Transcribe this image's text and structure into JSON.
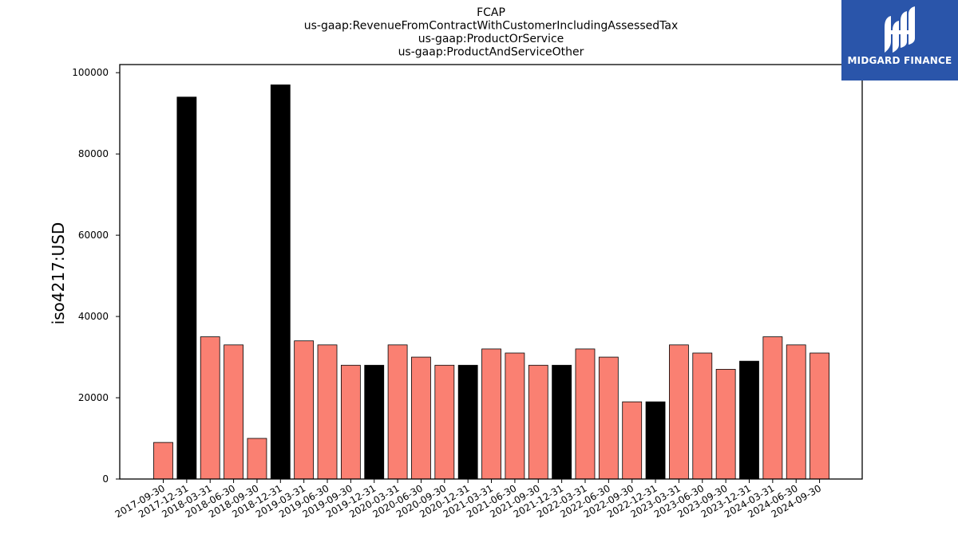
{
  "colors": {
    "regular": "#fa8072",
    "highlight": "#000000",
    "edge": "#000000",
    "logo_bg": "#2a55aa"
  },
  "logo": {
    "text": "MIDGARD FINANCE",
    "icon": "midgard-finance-logo-icon"
  },
  "chart_data": {
    "type": "bar",
    "title": [
      "FCAP",
      "us-gaap:RevenueFromContractWithCustomerIncludingAssessedTax",
      "us-gaap:ProductOrService",
      "us-gaap:ProductAndServiceOther"
    ],
    "xlabel": "",
    "ylabel": "iso4217:USD",
    "ylim": [
      0,
      102000
    ],
    "yticks": [
      0,
      20000,
      40000,
      60000,
      80000,
      100000
    ],
    "grid": false,
    "categories": [
      "2017-09-30",
      "2017-12-31",
      "2018-03-31",
      "2018-06-30",
      "2018-09-30",
      "2018-12-31",
      "2019-03-31",
      "2019-06-30",
      "2019-09-30",
      "2019-12-31",
      "2020-03-31",
      "2020-06-30",
      "2020-09-30",
      "2020-12-31",
      "2021-03-31",
      "2021-06-30",
      "2021-09-30",
      "2021-12-31",
      "2022-03-31",
      "2022-06-30",
      "2022-09-30",
      "2022-12-31",
      "2023-03-31",
      "2023-06-30",
      "2023-09-30",
      "2023-12-31",
      "2024-03-31",
      "2024-06-30",
      "2024-09-30"
    ],
    "values": [
      9000,
      94000,
      35000,
      33000,
      10000,
      97000,
      34000,
      33000,
      28000,
      28000,
      33000,
      30000,
      28000,
      28000,
      32000,
      31000,
      28000,
      28000,
      32000,
      30000,
      19000,
      19000,
      33000,
      31000,
      27000,
      29000,
      35000,
      33000,
      31000
    ],
    "highlight": [
      false,
      true,
      false,
      false,
      false,
      true,
      false,
      false,
      false,
      true,
      false,
      false,
      false,
      true,
      false,
      false,
      false,
      true,
      false,
      false,
      false,
      true,
      false,
      false,
      false,
      true,
      false,
      false,
      false
    ]
  }
}
